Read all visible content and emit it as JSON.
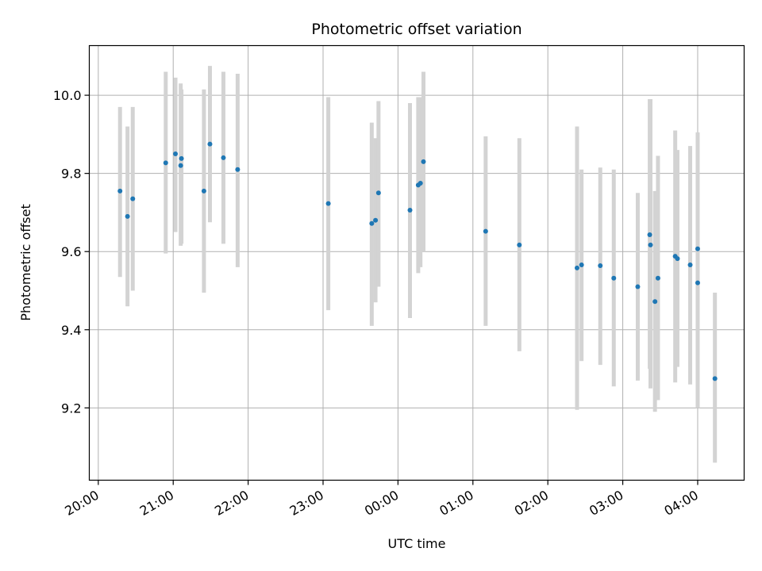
{
  "chart_data": {
    "type": "scatter",
    "title": "Photometric offset variation",
    "xlabel": "UTC time",
    "ylabel": "Photometric offset",
    "x_tick_labels": [
      "20:00",
      "21:00",
      "22:00",
      "23:00",
      "00:00",
      "01:00",
      "02:00",
      "03:00",
      "04:00"
    ],
    "x_tick_hours": [
      0,
      1,
      2,
      3,
      4,
      5,
      6,
      7,
      8
    ],
    "x_unit": "hours since 20:00 UTC",
    "xlim": [
      -0.12,
      8.62
    ],
    "y_ticks": [
      9.2,
      9.4,
      9.6,
      9.8,
      10.0
    ],
    "y_tick_labels": [
      "9.2",
      "9.4",
      "9.6",
      "9.8",
      "10.0"
    ],
    "ylim": [
      9.015,
      10.127
    ],
    "grid": true,
    "colors": {
      "point": "#1f77b4",
      "errorbar": "#d3d3d3",
      "grid": "#b0b0b0"
    },
    "points": [
      {
        "x": 0.29,
        "y": 9.755,
        "low": 9.535,
        "high": 9.97
      },
      {
        "x": 0.39,
        "y": 9.69,
        "low": 9.46,
        "high": 9.92
      },
      {
        "x": 0.46,
        "y": 9.735,
        "low": 9.5,
        "high": 9.97
      },
      {
        "x": 0.9,
        "y": 9.827,
        "low": 9.595,
        "high": 10.06
      },
      {
        "x": 1.03,
        "y": 9.85,
        "low": 9.65,
        "high": 10.045
      },
      {
        "x": 1.1,
        "y": 9.82,
        "low": 9.615,
        "high": 10.03
      },
      {
        "x": 1.11,
        "y": 9.838,
        "low": 9.62,
        "high": 10.015
      },
      {
        "x": 1.41,
        "y": 9.755,
        "low": 9.495,
        "high": 10.015
      },
      {
        "x": 1.49,
        "y": 9.875,
        "low": 9.675,
        "high": 10.075
      },
      {
        "x": 1.67,
        "y": 9.84,
        "low": 9.62,
        "high": 10.06
      },
      {
        "x": 1.86,
        "y": 9.81,
        "low": 9.56,
        "high": 10.055
      },
      {
        "x": 3.07,
        "y": 9.723,
        "low": 9.45,
        "high": 9.995
      },
      {
        "x": 3.65,
        "y": 9.672,
        "low": 9.41,
        "high": 9.93
      },
      {
        "x": 3.7,
        "y": 9.68,
        "low": 9.47,
        "high": 9.89
      },
      {
        "x": 3.74,
        "y": 9.75,
        "low": 9.51,
        "high": 9.985
      },
      {
        "x": 4.16,
        "y": 9.706,
        "low": 9.43,
        "high": 9.98
      },
      {
        "x": 4.27,
        "y": 9.77,
        "low": 9.545,
        "high": 9.995
      },
      {
        "x": 4.3,
        "y": 9.775,
        "low": 9.56,
        "high": 9.995
      },
      {
        "x": 4.34,
        "y": 9.83,
        "low": 9.6,
        "high": 10.06
      },
      {
        "x": 5.17,
        "y": 9.652,
        "low": 9.41,
        "high": 9.895
      },
      {
        "x": 5.62,
        "y": 9.617,
        "low": 9.345,
        "high": 9.89
      },
      {
        "x": 6.39,
        "y": 9.558,
        "low": 9.195,
        "high": 9.92
      },
      {
        "x": 6.45,
        "y": 9.566,
        "low": 9.32,
        "high": 9.81
      },
      {
        "x": 6.7,
        "y": 9.564,
        "low": 9.31,
        "high": 9.815
      },
      {
        "x": 6.88,
        "y": 9.532,
        "low": 9.255,
        "high": 9.81
      },
      {
        "x": 7.2,
        "y": 9.51,
        "low": 9.27,
        "high": 9.75
      },
      {
        "x": 7.36,
        "y": 9.643,
        "low": 9.3,
        "high": 9.99
      },
      {
        "x": 7.37,
        "y": 9.617,
        "low": 9.25,
        "high": 9.99
      },
      {
        "x": 7.43,
        "y": 9.472,
        "low": 9.19,
        "high": 9.755
      },
      {
        "x": 7.47,
        "y": 9.532,
        "low": 9.22,
        "high": 9.845
      },
      {
        "x": 7.7,
        "y": 9.588,
        "low": 9.265,
        "high": 9.91
      },
      {
        "x": 7.73,
        "y": 9.582,
        "low": 9.305,
        "high": 9.86
      },
      {
        "x": 7.9,
        "y": 9.566,
        "low": 9.26,
        "high": 9.87
      },
      {
        "x": 8.0,
        "y": 9.607,
        "low": 9.3,
        "high": 9.905
      },
      {
        "x": 8.0,
        "y": 9.52,
        "low": 9.2,
        "high": 9.84
      },
      {
        "x": 8.23,
        "y": 9.275,
        "low": 9.06,
        "high": 9.495
      }
    ]
  }
}
